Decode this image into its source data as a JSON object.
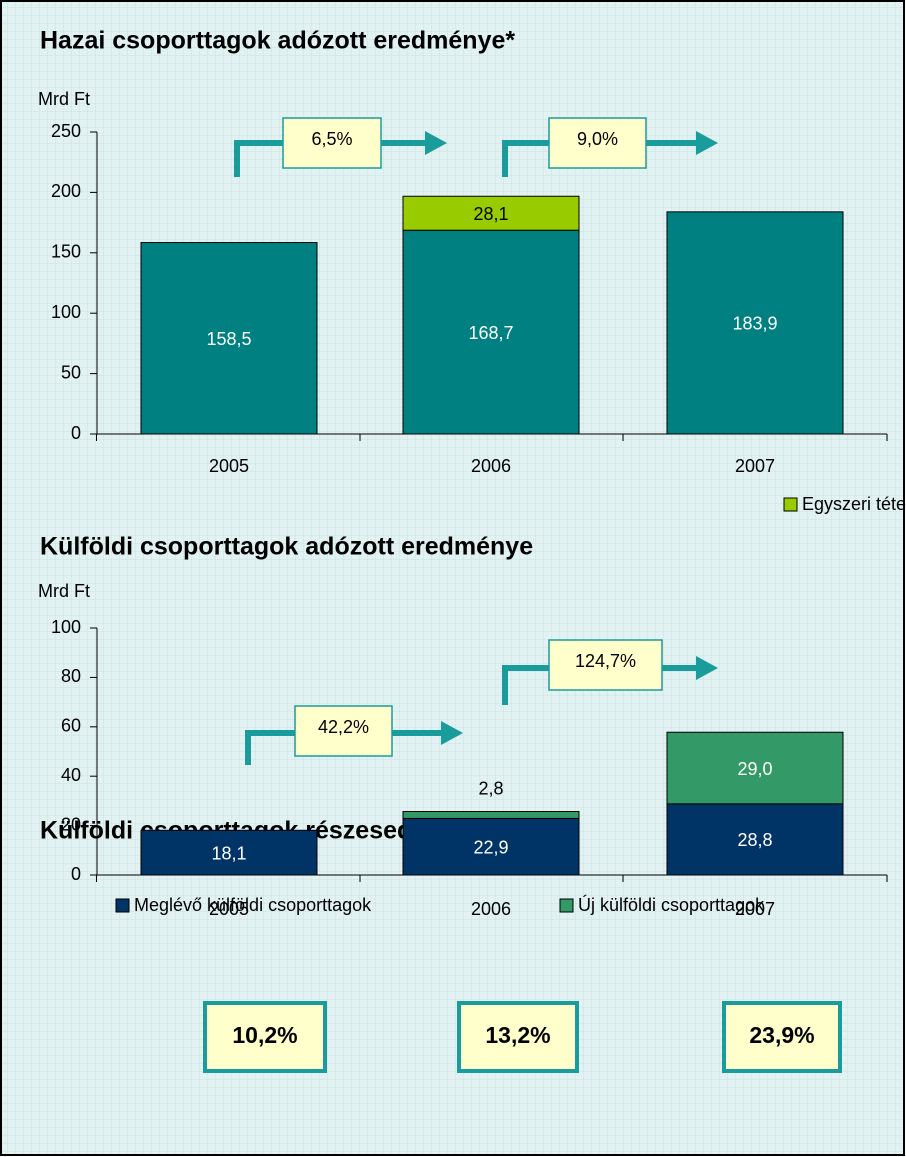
{
  "chart_data": [
    {
      "type": "bar",
      "stacked": true,
      "title": "Hazai csoporttagok adózott eredménye*",
      "y_label": "Mrd Ft",
      "categories": [
        "2005",
        "2006",
        "2007"
      ],
      "series": [
        {
          "color": "#008080",
          "values": [
            158.5,
            168.7,
            183.9
          ],
          "value_labels": [
            "158,5",
            "168,7",
            "183,9"
          ]
        },
        {
          "name": "Egyszeri tételek",
          "color": "#99cc00",
          "values": [
            null,
            28.1,
            null
          ],
          "value_labels": [
            null,
            "28,1",
            null
          ]
        }
      ],
      "ylim": [
        0,
        250
      ],
      "yticks": [
        0,
        50,
        100,
        150,
        200,
        250
      ],
      "annotations": [
        "6,5%",
        "9,0%"
      ]
    },
    {
      "type": "bar",
      "stacked": true,
      "title": "Külföldi csoporttagok adózott eredménye",
      "y_label": "Mrd Ft",
      "categories": [
        "2005",
        "2006",
        "2007"
      ],
      "series": [
        {
          "name": "Meglévő külföldi csoporttagok",
          "color": "#003366",
          "values": [
            18.1,
            22.9,
            28.8
          ],
          "value_labels": [
            "18,1",
            "22,9",
            "28,8"
          ]
        },
        {
          "name": "Új külföldi csoporttagok",
          "color": "#339966",
          "values": [
            null,
            2.8,
            29.0
          ],
          "value_labels": [
            null,
            "2,8",
            "29,0"
          ]
        }
      ],
      "ylim": [
        0,
        100
      ],
      "yticks": [
        0,
        20,
        40,
        60,
        80,
        100
      ],
      "annotations": [
        "42,2%",
        "124,7%"
      ]
    }
  ],
  "share": {
    "title": "Külföldi csoporttagok részesedése**",
    "values": [
      10.2,
      13.2,
      23.9
    ],
    "value_labels": [
      "10,2%",
      "13,2%",
      "23,9%"
    ]
  }
}
